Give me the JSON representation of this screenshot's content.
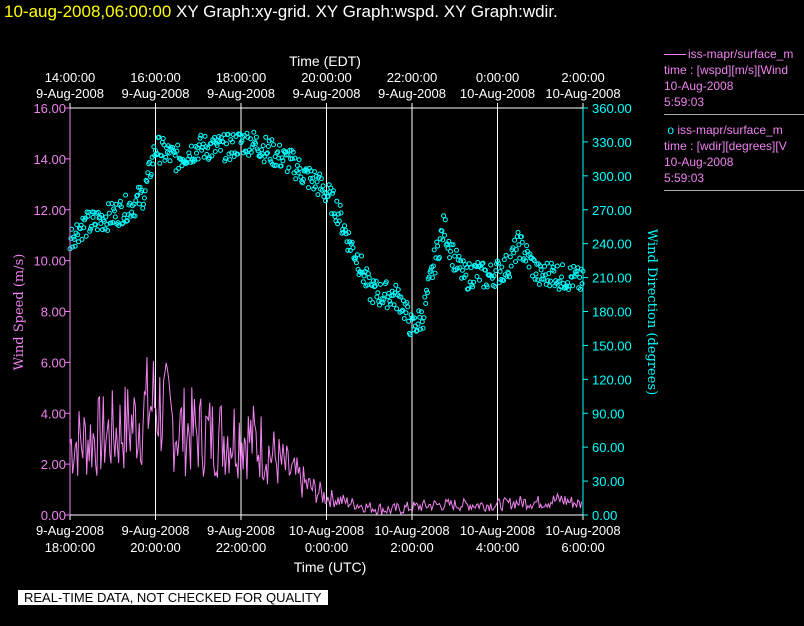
{
  "header": {
    "timestamp": "10-aug-2008,06:00:00",
    "graph_titles": "XY Graph:xy-grid.  XY Graph:wspd.  XY Graph:wdir."
  },
  "legend": {
    "wspd": {
      "name": "iss-mapr/surface_m",
      "var": "time : [wspd][m/s][Wind",
      "date": "10-Aug-2008",
      "time": "5:59:03",
      "color": "#ee82ee"
    },
    "wdir": {
      "name": "iss-mapr/surface_m",
      "var": "time : [wdir][degrees][V",
      "date": "10-Aug-2008",
      "time": "5:59:03",
      "color": "#00ffff"
    }
  },
  "notice": "REAL-TIME DATA, NOT CHECKED FOR QUALITY",
  "chart_data": {
    "type": "line",
    "top_axis": {
      "label": "Time (EDT)",
      "ticks": [
        {
          "time": "14:00:00",
          "date": "9-Aug-2008"
        },
        {
          "time": "16:00:00",
          "date": "9-Aug-2008"
        },
        {
          "time": "18:00:00",
          "date": "9-Aug-2008"
        },
        {
          "time": "20:00:00",
          "date": "9-Aug-2008"
        },
        {
          "time": "22:00:00",
          "date": "9-Aug-2008"
        },
        {
          "time": "0:00:00",
          "date": "10-Aug-2008"
        },
        {
          "time": "2:00:00",
          "date": "10-Aug-2008"
        }
      ]
    },
    "bottom_axis": {
      "label": "Time (UTC)",
      "ticks": [
        {
          "date": "9-Aug-2008",
          "time": "18:00:00"
        },
        {
          "date": "9-Aug-2008",
          "time": "20:00:00"
        },
        {
          "date": "9-Aug-2008",
          "time": "22:00:00"
        },
        {
          "date": "10-Aug-2008",
          "time": "0:00:00"
        },
        {
          "date": "10-Aug-2008",
          "time": "2:00:00"
        },
        {
          "date": "10-Aug-2008",
          "time": "4:00:00"
        },
        {
          "date": "10-Aug-2008",
          "time": "6:00:00"
        }
      ],
      "range_hours_utc": [
        18,
        30
      ]
    },
    "left_axis": {
      "label": "Wind Speed (m/s)",
      "ylim": [
        0,
        16
      ],
      "ticks": [
        "0.00",
        "2.00",
        "4.00",
        "6.00",
        "8.00",
        "10.00",
        "12.00",
        "14.00",
        "16.00"
      ],
      "color": "#ee82ee"
    },
    "right_axis": {
      "label": "Wind Direction (degrees)",
      "ylim": [
        0,
        360
      ],
      "ticks": [
        "0.00",
        "30.00",
        "60.00",
        "90.00",
        "120.00",
        "150.00",
        "180.00",
        "210.00",
        "240.00",
        "270.00",
        "300.00",
        "330.00",
        "360.00"
      ],
      "color": "#00ffff"
    },
    "grid": "vertical",
    "series": [
      {
        "name": "wspd",
        "style": "line",
        "axis": "left",
        "color": "#ee82ee",
        "x": [
          18.0,
          18.5,
          19.0,
          19.5,
          20.0,
          20.5,
          21.0,
          21.5,
          22.0,
          22.5,
          23.0,
          23.5,
          24.0,
          24.5,
          25.0,
          25.5,
          26.0,
          26.5,
          27.0,
          27.5,
          28.0,
          28.5,
          29.0,
          29.5,
          30.0
        ],
        "values": [
          2.8,
          3.0,
          3.2,
          3.6,
          4.5,
          3.4,
          3.2,
          3.1,
          3.2,
          2.7,
          1.9,
          1.2,
          0.7,
          0.5,
          0.3,
          0.2,
          0.3,
          0.4,
          0.4,
          0.4,
          0.4,
          0.5,
          0.5,
          0.6,
          0.4
        ]
      },
      {
        "name": "wdir",
        "style": "markers",
        "axis": "right",
        "color": "#00ffff",
        "x": [
          18.0,
          18.25,
          18.5,
          18.75,
          19.0,
          19.25,
          19.5,
          19.75,
          20.0,
          20.25,
          20.5,
          20.75,
          21.0,
          21.25,
          21.5,
          21.75,
          22.0,
          22.25,
          22.5,
          22.75,
          23.0,
          23.25,
          23.5,
          23.75,
          24.0,
          24.25,
          24.5,
          24.75,
          25.0,
          25.25,
          25.5,
          25.75,
          26.0,
          26.25,
          26.5,
          26.75,
          27.0,
          27.25,
          27.5,
          27.75,
          28.0,
          28.25,
          28.5,
          28.75,
          29.0,
          29.25,
          29.5,
          29.75,
          30.0
        ],
        "values": [
          245,
          255,
          258,
          262,
          265,
          270,
          275,
          285,
          325,
          320,
          315,
          320,
          325,
          325,
          325,
          325,
          330,
          330,
          325,
          320,
          315,
          310,
          300,
          295,
          285,
          270,
          245,
          225,
          200,
          195,
          195,
          190,
          165,
          175,
          220,
          255,
          225,
          210,
          215,
          210,
          215,
          220,
          240,
          225,
          210,
          215,
          210,
          210,
          205
        ]
      }
    ]
  }
}
